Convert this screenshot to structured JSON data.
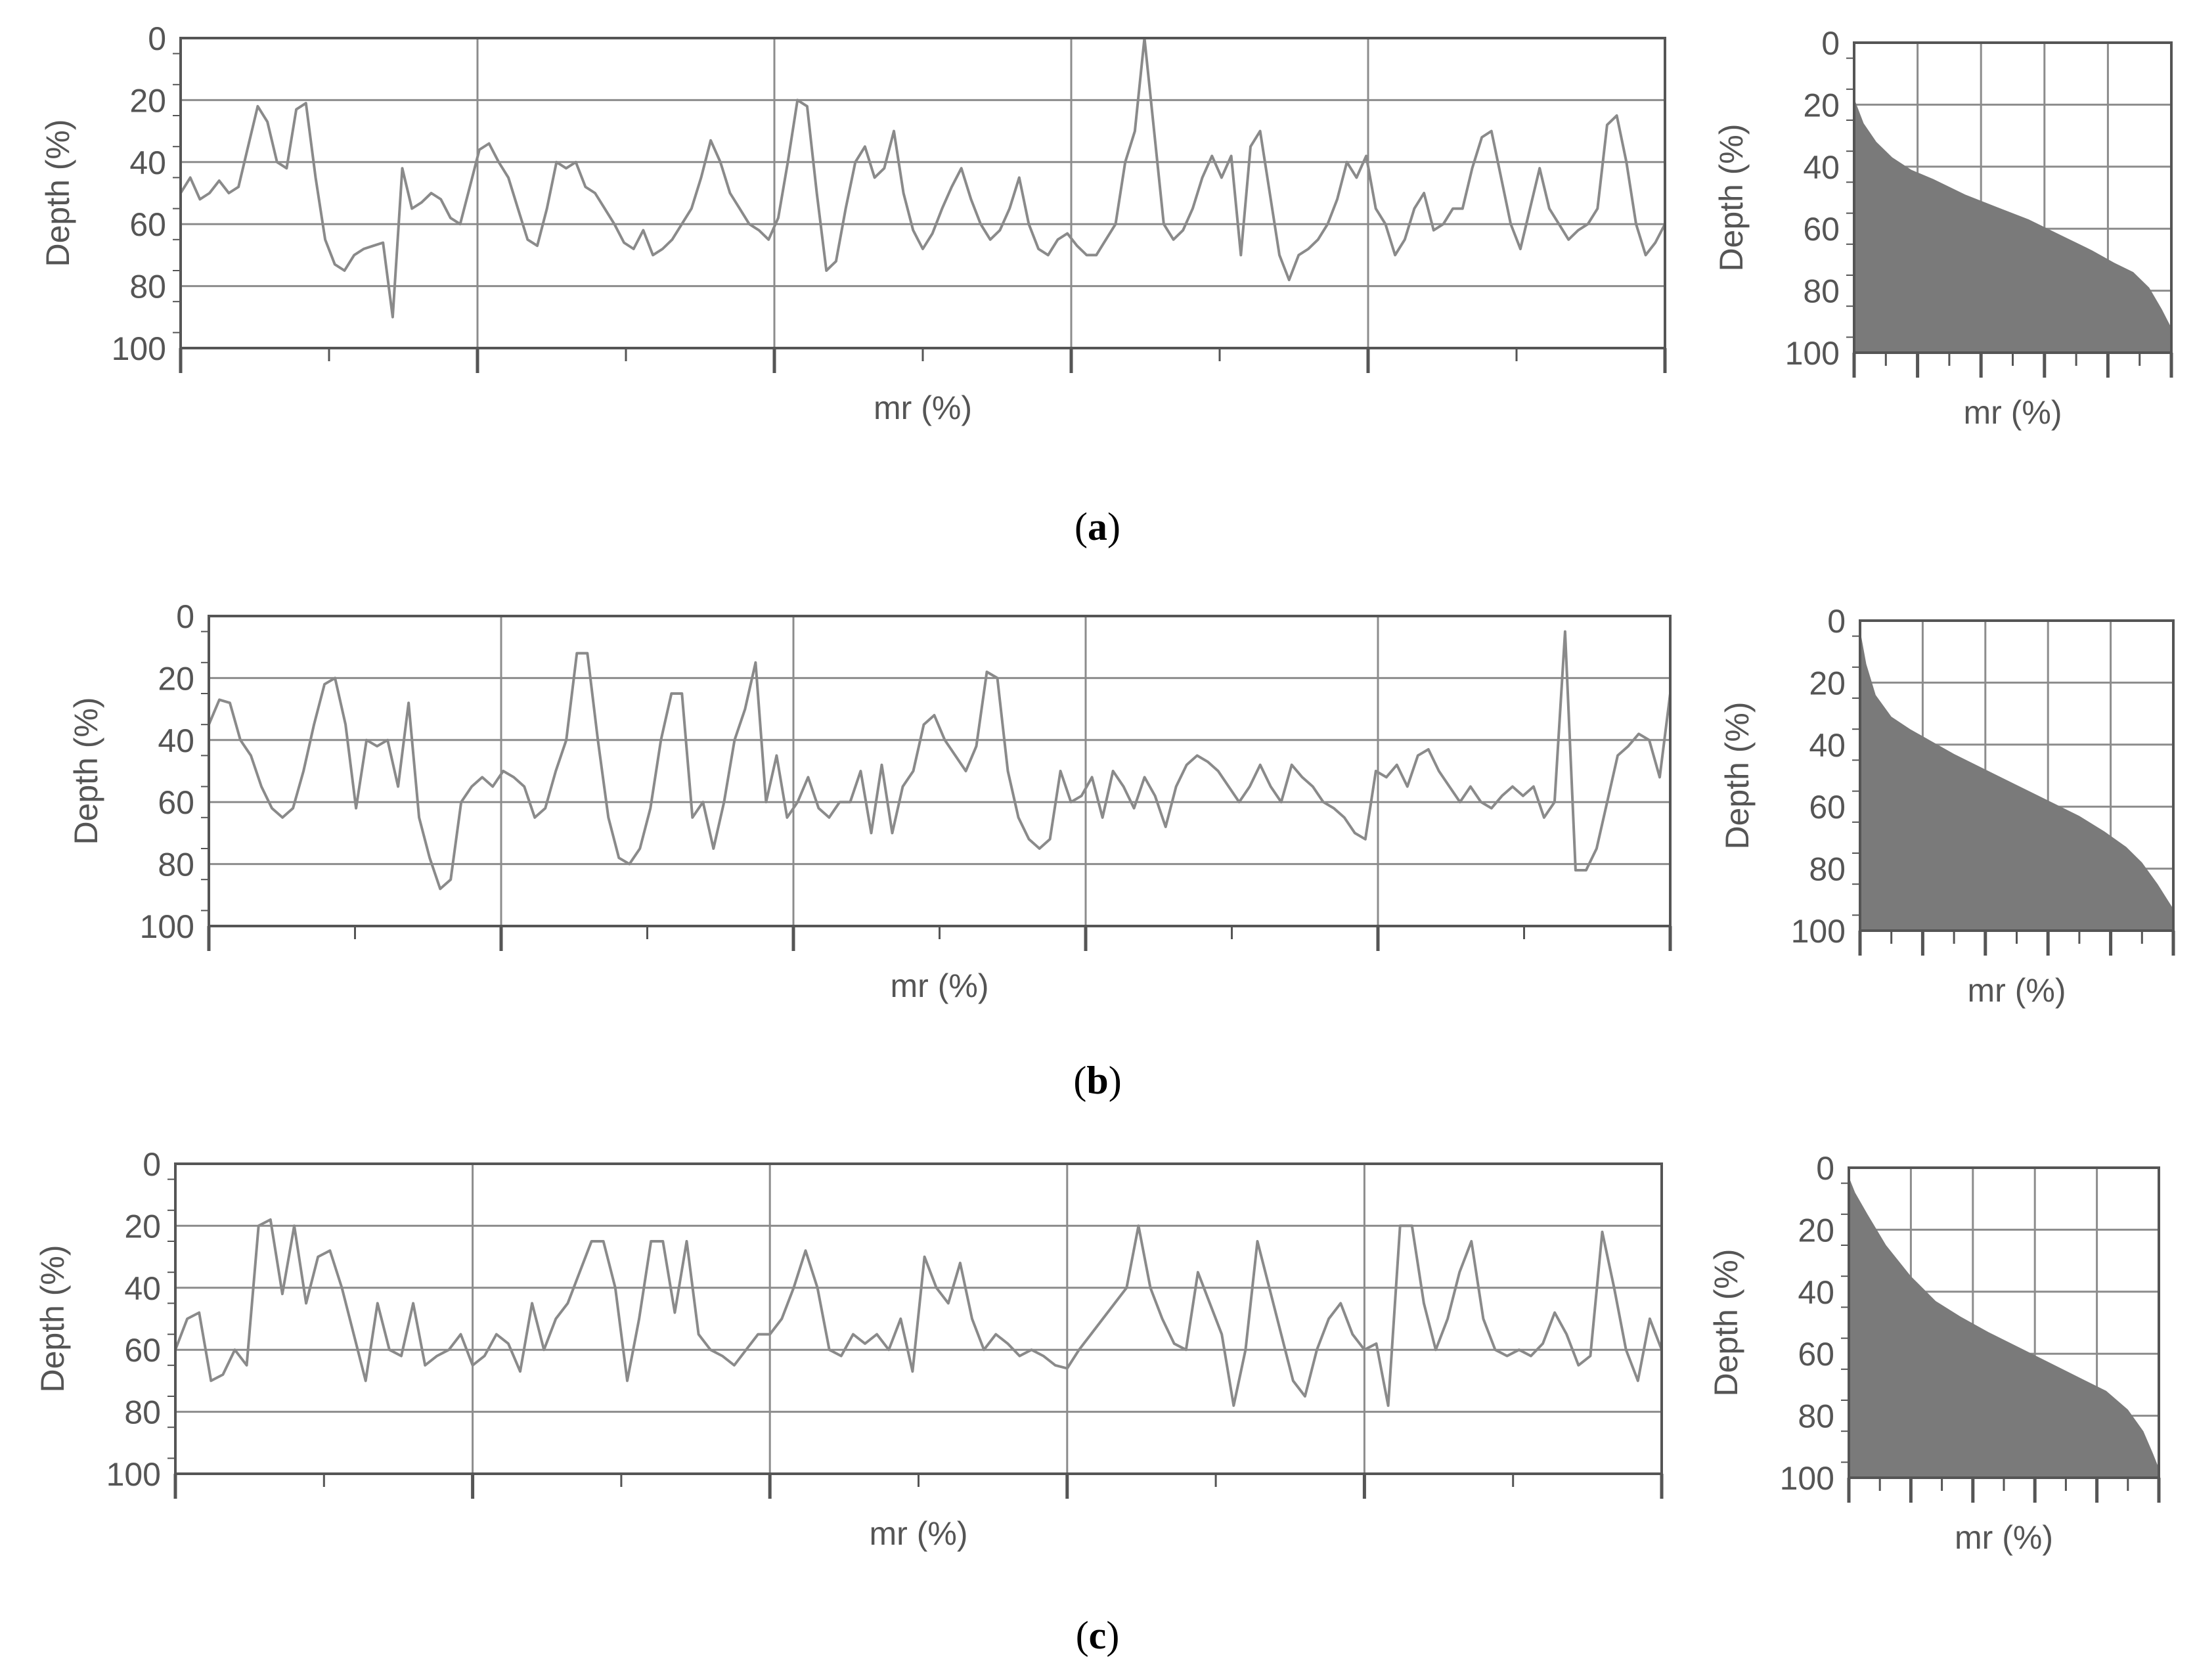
{
  "chart_data": [
    {
      "panel": "a",
      "type": "line",
      "subplot": "profile",
      "xlabel": "mr (%)",
      "ylabel": "Depth (%)",
      "ylim": [
        0,
        100
      ],
      "y_inverted": true,
      "yticks": [
        0,
        20,
        40,
        60,
        80,
        100
      ],
      "xlim": [
        0,
        100
      ],
      "x_gridlines": 5,
      "grid": true,
      "series": [
        {
          "values": [
            50,
            45,
            52,
            50,
            46,
            50,
            48,
            35,
            22,
            27,
            40,
            42,
            23,
            21,
            45,
            65,
            73,
            75,
            70,
            68,
            67,
            66,
            90,
            42,
            55,
            53,
            50,
            52,
            58,
            60,
            48,
            36,
            34,
            40,
            45,
            55,
            65,
            67,
            55,
            40,
            42,
            40,
            48,
            50,
            55,
            60,
            66,
            68,
            62,
            70,
            68,
            65,
            60,
            55,
            45,
            33,
            40,
            50,
            55,
            60,
            62,
            65,
            58,
            40,
            20,
            22,
            50,
            75,
            72,
            55,
            40,
            35,
            45,
            42,
            30,
            50,
            62,
            68,
            63,
            55,
            48,
            42,
            52,
            60,
            65,
            62,
            55,
            45,
            60,
            68,
            70,
            65,
            63,
            67,
            70,
            70,
            65,
            60,
            40,
            30,
            0,
            30,
            60,
            65,
            62,
            55,
            45,
            38,
            45,
            38,
            70,
            35,
            30,
            50,
            70,
            78,
            70,
            68,
            65,
            60,
            52,
            40,
            45,
            38,
            55,
            60,
            70,
            65,
            55,
            50,
            62,
            60,
            55,
            55,
            42,
            32,
            30,
            45,
            60,
            68,
            55,
            42,
            55,
            60,
            65,
            62,
            60,
            55,
            28,
            25,
            40,
            60,
            70,
            66,
            60
          ]
        }
      ]
    },
    {
      "panel": "a",
      "type": "area",
      "subplot": "abbott-firestone",
      "xlabel": "mr (%)",
      "ylabel": "Depth (%)",
      "ylim": [
        0,
        100
      ],
      "y_inverted": true,
      "yticks": [
        0,
        20,
        40,
        60,
        80,
        100
      ],
      "x": [
        0,
        3,
        7,
        12,
        18,
        25,
        35,
        45,
        55,
        65,
        75,
        82,
        88,
        93,
        97,
        100
      ],
      "values": [
        18,
        26,
        32,
        37,
        41,
        44,
        49,
        53,
        57,
        62,
        67,
        71,
        74,
        79,
        86,
        92
      ],
      "color": "#7a7a7a",
      "grid": true
    },
    {
      "panel": "b",
      "type": "line",
      "subplot": "profile",
      "xlabel": "mr (%)",
      "ylabel": "Depth (%)",
      "ylim": [
        0,
        100
      ],
      "y_inverted": true,
      "yticks": [
        0,
        20,
        40,
        60,
        80,
        100
      ],
      "xlim": [
        0,
        100
      ],
      "x_gridlines": 5,
      "grid": true,
      "series": [
        {
          "values": [
            35,
            27,
            28,
            40,
            45,
            55,
            62,
            65,
            62,
            50,
            35,
            22,
            20,
            35,
            62,
            40,
            42,
            40,
            55,
            28,
            65,
            78,
            88,
            85,
            60,
            55,
            52,
            55,
            50,
            52,
            55,
            65,
            62,
            50,
            40,
            12,
            12,
            40,
            65,
            78,
            80,
            75,
            62,
            40,
            25,
            25,
            65,
            60,
            75,
            60,
            40,
            30,
            15,
            60,
            45,
            65,
            60,
            52,
            62,
            65,
            60,
            60,
            50,
            70,
            48,
            70,
            55,
            50,
            35,
            32,
            40,
            45,
            50,
            42,
            18,
            20,
            50,
            65,
            72,
            75,
            72,
            50,
            60,
            58,
            52,
            65,
            50,
            55,
            62,
            52,
            58,
            68,
            55,
            48,
            45,
            47,
            50,
            55,
            60,
            55,
            48,
            55,
            60,
            48,
            52,
            55,
            60,
            62,
            65,
            70,
            72,
            50,
            52,
            48,
            55,
            45,
            43,
            50,
            55,
            60,
            55,
            60,
            62,
            58,
            55,
            58,
            55,
            65,
            60,
            5,
            82,
            82,
            75,
            60,
            45,
            42,
            38,
            40,
            52,
            25
          ]
        }
      ]
    },
    {
      "panel": "b",
      "type": "area",
      "subplot": "abbott-firestone",
      "xlabel": "mr (%)",
      "ylabel": "Depth (%)",
      "ylim": [
        0,
        100
      ],
      "y_inverted": true,
      "yticks": [
        0,
        20,
        40,
        60,
        80,
        100
      ],
      "x": [
        0,
        2,
        5,
        10,
        16,
        23,
        30,
        40,
        50,
        60,
        70,
        78,
        85,
        90,
        95,
        100
      ],
      "values": [
        3,
        14,
        24,
        31,
        35,
        39,
        43,
        48,
        53,
        58,
        63,
        68,
        73,
        78,
        85,
        93
      ],
      "color": "#7a7a7a",
      "grid": true
    },
    {
      "panel": "c",
      "type": "line",
      "subplot": "profile",
      "xlabel": "mr (%)",
      "ylabel": "Depth (%)",
      "ylim": [
        0,
        100
      ],
      "y_inverted": true,
      "yticks": [
        0,
        20,
        40,
        60,
        80,
        100
      ],
      "xlim": [
        0,
        100
      ],
      "x_gridlines": 5,
      "grid": true,
      "series": [
        {
          "values": [
            60,
            50,
            48,
            70,
            68,
            60,
            65,
            20,
            18,
            42,
            20,
            45,
            30,
            28,
            40,
            55,
            70,
            45,
            60,
            62,
            45,
            65,
            62,
            60,
            55,
            65,
            62,
            55,
            58,
            67,
            45,
            60,
            50,
            45,
            35,
            25,
            25,
            40,
            70,
            50,
            25,
            25,
            48,
            25,
            55,
            60,
            62,
            65,
            60,
            55,
            55,
            50,
            40,
            28,
            40,
            60,
            62,
            55,
            58,
            55,
            60,
            50,
            67,
            30,
            40,
            45,
            32,
            50,
            60,
            55,
            58,
            62,
            60,
            62,
            65,
            66,
            60,
            55,
            50,
            45,
            40,
            20,
            40,
            50,
            58,
            60,
            35,
            45,
            55,
            78,
            60,
            25,
            40,
            55,
            70,
            75,
            60,
            50,
            45,
            55,
            60,
            58,
            78,
            20,
            20,
            45,
            60,
            50,
            35,
            25,
            50,
            60,
            62,
            60,
            62,
            58,
            48,
            55,
            65,
            62,
            22,
            40,
            60,
            70,
            50,
            60
          ]
        }
      ]
    },
    {
      "panel": "c",
      "type": "area",
      "subplot": "abbott-firestone",
      "xlabel": "mr (%)",
      "ylabel": "Depth (%)",
      "ylim": [
        0,
        100
      ],
      "y_inverted": true,
      "yticks": [
        0,
        20,
        40,
        60,
        80,
        100
      ],
      "x": [
        0,
        2,
        6,
        12,
        20,
        28,
        36,
        45,
        55,
        65,
        75,
        83,
        90,
        95,
        98,
        100
      ],
      "values": [
        3,
        8,
        15,
        25,
        35,
        43,
        48,
        53,
        58,
        63,
        68,
        72,
        78,
        85,
        92,
        97
      ],
      "color": "#7a7a7a",
      "grid": true
    }
  ],
  "ytick_labels": [
    "0",
    "20",
    "40",
    "60",
    "80",
    "100"
  ],
  "captions": {
    "a": "a",
    "b": "b",
    "c": "c"
  },
  "colors": {
    "line": "#8a8a8a",
    "grid": "#8c8c8c",
    "frame": "#555555",
    "fill": "#7a7a7a",
    "text": "#555555"
  }
}
